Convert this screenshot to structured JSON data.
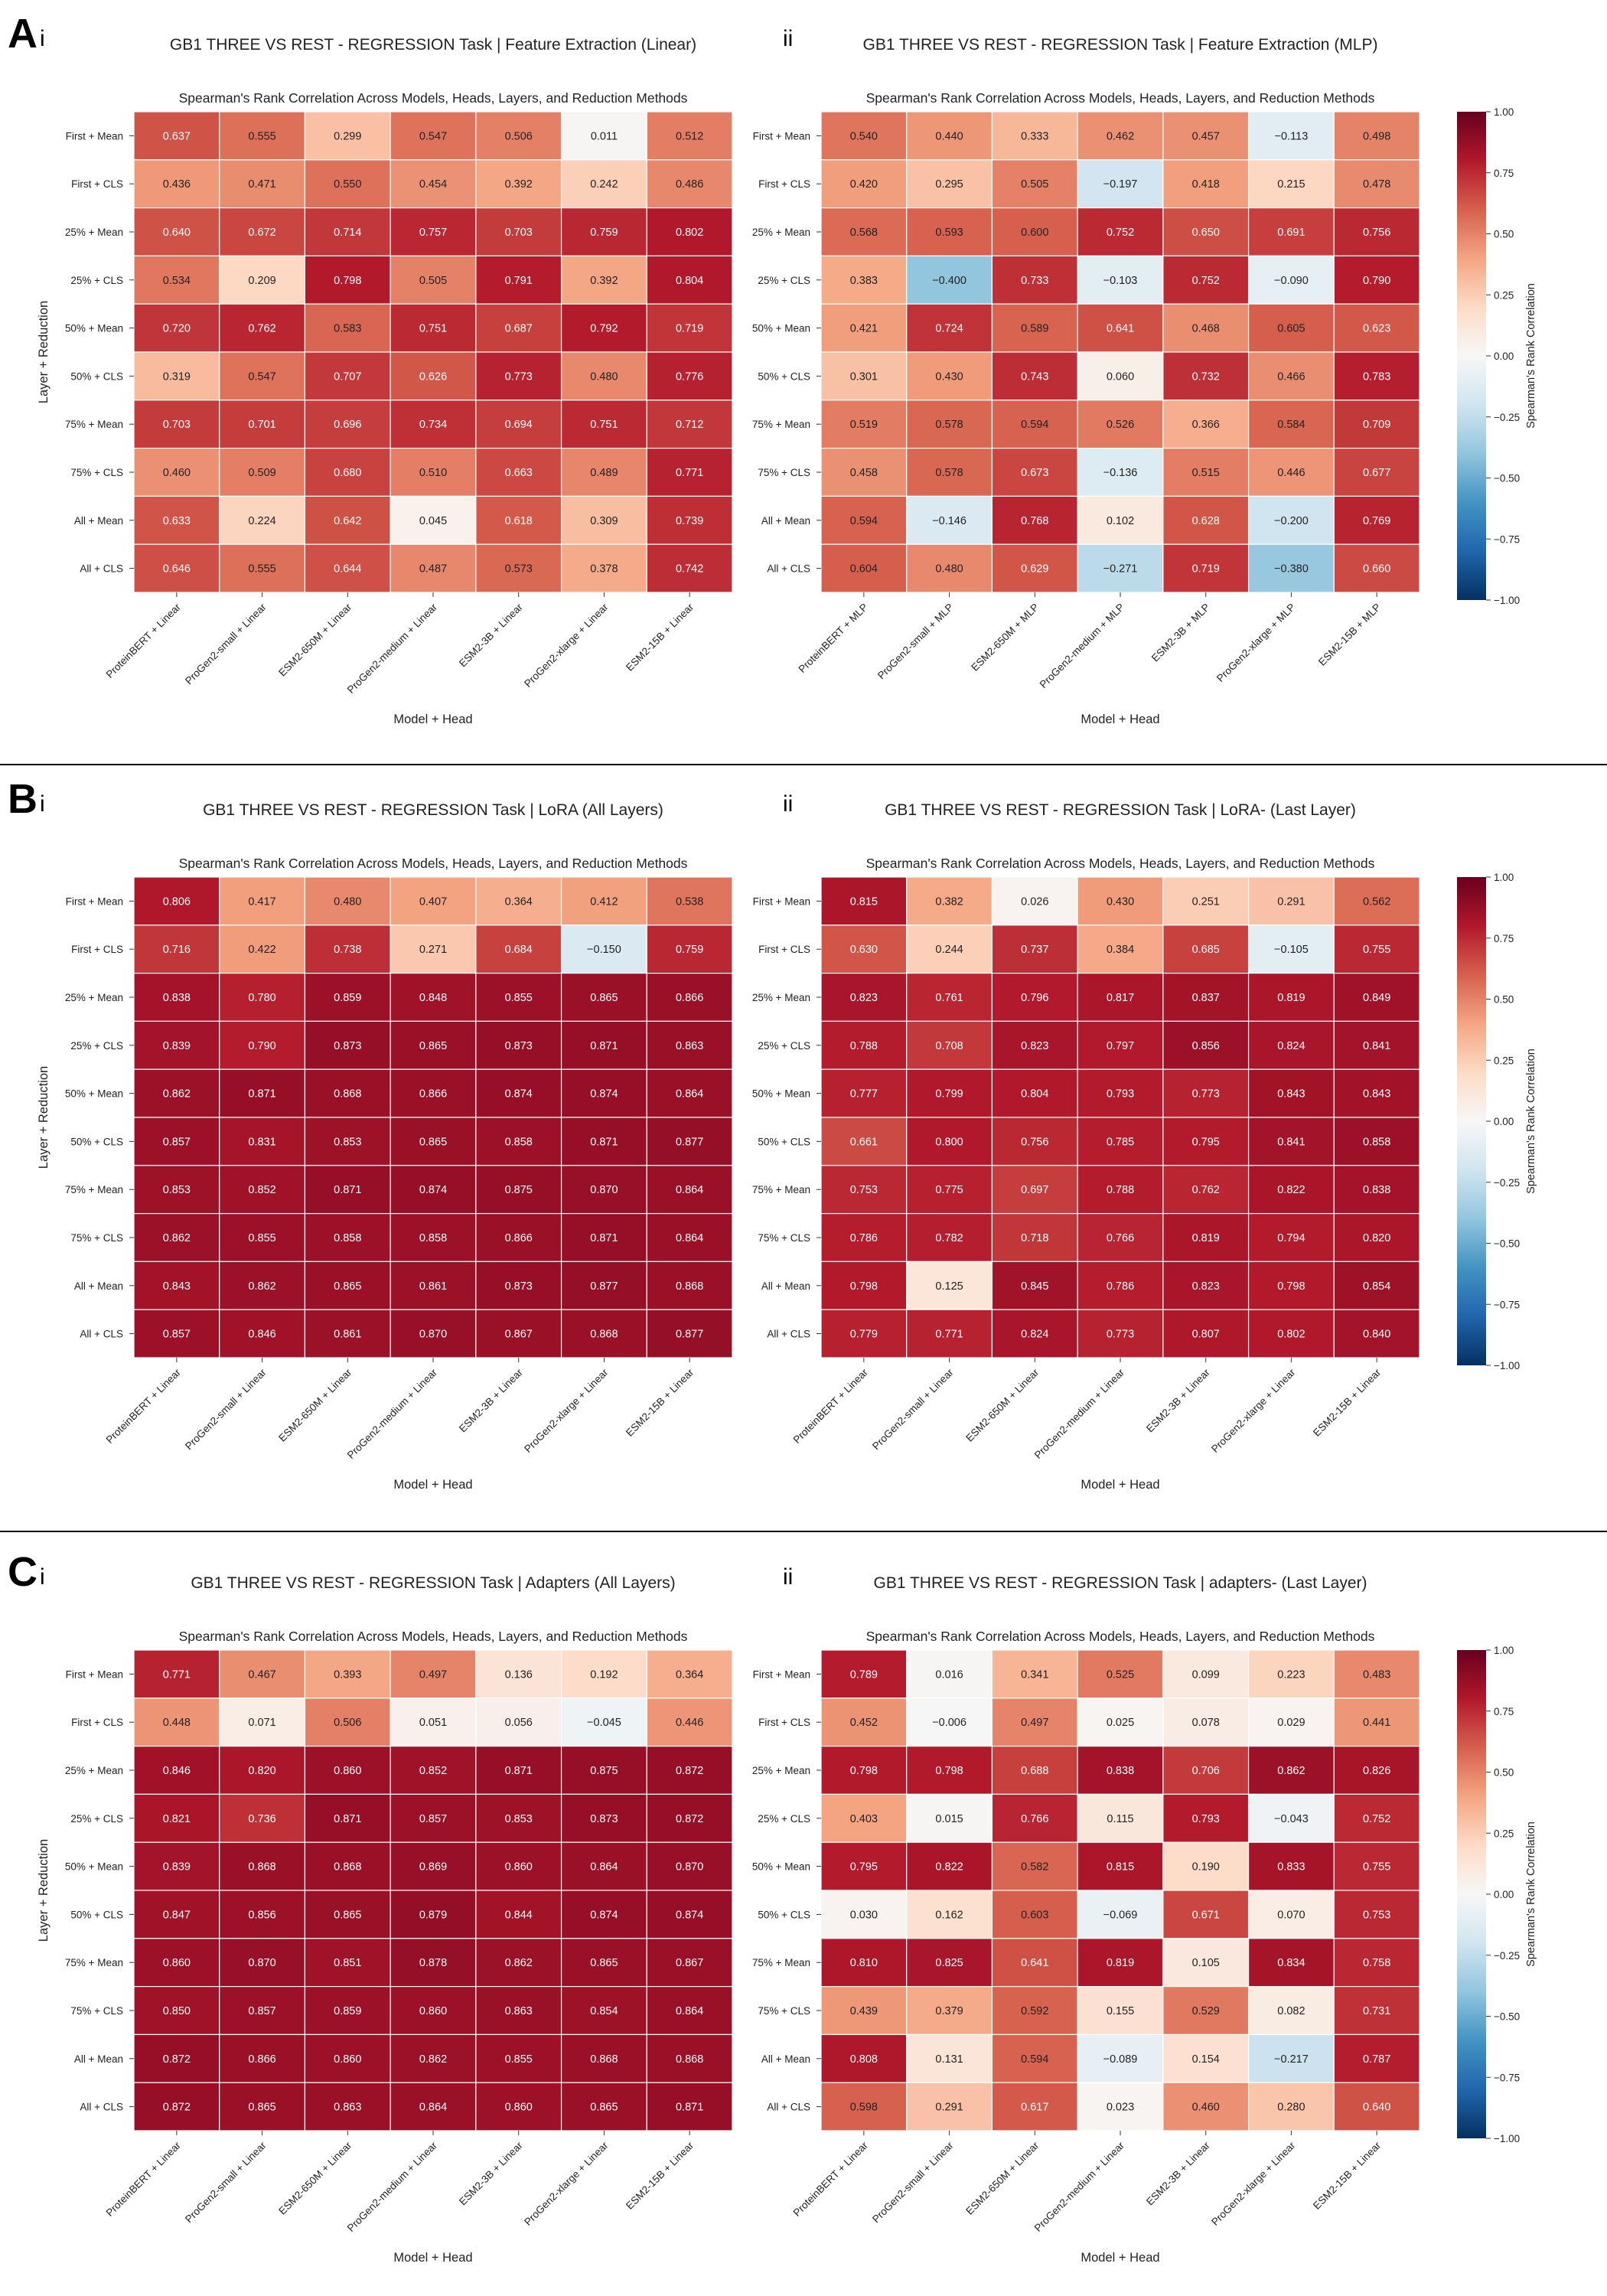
{
  "rows": [
    "First + Mean",
    "First + CLS",
    "25% + Mean",
    "25% + CLS",
    "50% + Mean",
    "50% + CLS",
    "75% + Mean",
    "75% + CLS",
    "All + Mean",
    "All + CLS"
  ],
  "subtitle": "Spearman's Rank Correlation Across Models, Heads, Layers, and Reduction Methods",
  "xlabel": "Model + Head",
  "ylabel": "Layer + Reduction",
  "colorbar": {
    "label": "Spearman's Rank Correlation",
    "range": [
      -1.0,
      1.0
    ],
    "ticks": [
      "1.00",
      "0.75",
      "0.50",
      "0.25",
      "0.00",
      "−0.25",
      "−0.50",
      "−0.75",
      "−1.00"
    ],
    "colormap": "RdBu_r",
    "colors": [
      "#053061",
      "#2166ac",
      "#4393c3",
      "#92c5de",
      "#d1e5f0",
      "#f7f7f7",
      "#fddbc7",
      "#f4a582",
      "#d6604d",
      "#b2182b",
      "#67001f"
    ]
  },
  "panels": [
    {
      "letter": "A",
      "sub": "i",
      "title": "GB1 THREE VS REST - REGRESSION Task | Feature Extraction (Linear)",
      "columns": [
        "ProteinBERT + Linear",
        "ProGen2-small + Linear",
        "ESM2-650M + Linear",
        "ProGen2-medium + Linear",
        "ESM2-3B + Linear",
        "ProGen2-xlarge + Linear",
        "ESM2-15B + Linear"
      ],
      "values": [
        [
          0.637,
          0.555,
          0.299,
          0.547,
          0.506,
          0.011,
          0.512
        ],
        [
          0.436,
          0.471,
          0.55,
          0.454,
          0.392,
          0.242,
          0.486
        ],
        [
          0.64,
          0.672,
          0.714,
          0.757,
          0.703,
          0.759,
          0.802
        ],
        [
          0.534,
          0.209,
          0.798,
          0.505,
          0.791,
          0.392,
          0.804
        ],
        [
          0.72,
          0.762,
          0.583,
          0.751,
          0.687,
          0.792,
          0.719
        ],
        [
          0.319,
          0.547,
          0.707,
          0.626,
          0.773,
          0.48,
          0.776
        ],
        [
          0.703,
          0.701,
          0.696,
          0.734,
          0.694,
          0.751,
          0.712
        ],
        [
          0.46,
          0.509,
          0.68,
          0.51,
          0.663,
          0.489,
          0.771
        ],
        [
          0.633,
          0.224,
          0.642,
          0.045,
          0.618,
          0.309,
          0.739
        ],
        [
          0.646,
          0.555,
          0.644,
          0.487,
          0.573,
          0.378,
          0.742
        ]
      ]
    },
    {
      "letter": "",
      "sub": "ii",
      "title": "GB1 THREE VS REST - REGRESSION Task | Feature Extraction (MLP)",
      "columns": [
        "ProteinBERT + MLP",
        "ProGen2-small + MLP",
        "ESM2-650M + MLP",
        "ProGen2-medium + MLP",
        "ESM2-3B + MLP",
        "ProGen2-xlarge + MLP",
        "ESM2-15B + MLP"
      ],
      "values": [
        [
          0.54,
          0.44,
          0.333,
          0.462,
          0.457,
          -0.113,
          0.498
        ],
        [
          0.42,
          0.295,
          0.505,
          -0.197,
          0.418,
          0.215,
          0.478
        ],
        [
          0.568,
          0.593,
          0.6,
          0.752,
          0.65,
          0.691,
          0.756
        ],
        [
          0.383,
          -0.4,
          0.733,
          -0.103,
          0.752,
          -0.09,
          0.79
        ],
        [
          0.421,
          0.724,
          0.589,
          0.641,
          0.468,
          0.605,
          0.623
        ],
        [
          0.301,
          0.43,
          0.743,
          0.06,
          0.732,
          0.466,
          0.783
        ],
        [
          0.519,
          0.578,
          0.594,
          0.526,
          0.366,
          0.584,
          0.709
        ],
        [
          0.458,
          0.578,
          0.673,
          -0.136,
          0.515,
          0.446,
          0.677
        ],
        [
          0.594,
          -0.146,
          0.768,
          0.102,
          0.628,
          -0.2,
          0.769
        ],
        [
          0.604,
          0.48,
          0.629,
          -0.271,
          0.719,
          -0.38,
          0.66
        ]
      ]
    },
    {
      "letter": "B",
      "sub": "i",
      "title": "GB1 THREE VS REST - REGRESSION Task | LoRA (All Layers)",
      "columns": [
        "ProteinBERT + Linear",
        "ProGen2-small + Linear",
        "ESM2-650M + Linear",
        "ProGen2-medium + Linear",
        "ESM2-3B + Linear",
        "ProGen2-xlarge + Linear",
        "ESM2-15B + Linear"
      ],
      "values": [
        [
          0.806,
          0.417,
          0.48,
          0.407,
          0.364,
          0.412,
          0.538
        ],
        [
          0.716,
          0.422,
          0.738,
          0.271,
          0.684,
          -0.15,
          0.759
        ],
        [
          0.838,
          0.78,
          0.859,
          0.848,
          0.855,
          0.865,
          0.866
        ],
        [
          0.839,
          0.79,
          0.873,
          0.865,
          0.873,
          0.871,
          0.863
        ],
        [
          0.862,
          0.871,
          0.868,
          0.866,
          0.874,
          0.874,
          0.864
        ],
        [
          0.857,
          0.831,
          0.853,
          0.865,
          0.858,
          0.871,
          0.877
        ],
        [
          0.853,
          0.852,
          0.871,
          0.874,
          0.875,
          0.87,
          0.864
        ],
        [
          0.862,
          0.855,
          0.858,
          0.858,
          0.866,
          0.871,
          0.864
        ],
        [
          0.843,
          0.862,
          0.865,
          0.861,
          0.873,
          0.877,
          0.868
        ],
        [
          0.857,
          0.846,
          0.861,
          0.87,
          0.867,
          0.868,
          0.877
        ]
      ]
    },
    {
      "letter": "",
      "sub": "ii",
      "title": "GB1 THREE VS REST - REGRESSION Task | LoRA- (Last Layer)",
      "columns": [
        "ProteinBERT + Linear",
        "ProGen2-small + Linear",
        "ESM2-650M + Linear",
        "ProGen2-medium + Linear",
        "ESM2-3B + Linear",
        "ProGen2-xlarge + Linear",
        "ESM2-15B + Linear"
      ],
      "values": [
        [
          0.815,
          0.382,
          0.026,
          0.43,
          0.251,
          0.291,
          0.562
        ],
        [
          0.63,
          0.244,
          0.737,
          0.384,
          0.685,
          -0.105,
          0.755
        ],
        [
          0.823,
          0.761,
          0.796,
          0.817,
          0.837,
          0.819,
          0.849
        ],
        [
          0.788,
          0.708,
          0.823,
          0.797,
          0.856,
          0.824,
          0.841
        ],
        [
          0.777,
          0.799,
          0.804,
          0.793,
          0.773,
          0.843,
          0.843
        ],
        [
          0.661,
          0.8,
          0.756,
          0.785,
          0.795,
          0.841,
          0.858
        ],
        [
          0.753,
          0.775,
          0.697,
          0.788,
          0.762,
          0.822,
          0.838
        ],
        [
          0.786,
          0.782,
          0.718,
          0.766,
          0.819,
          0.794,
          0.82
        ],
        [
          0.798,
          0.125,
          0.845,
          0.786,
          0.823,
          0.798,
          0.854
        ],
        [
          0.779,
          0.771,
          0.824,
          0.773,
          0.807,
          0.802,
          0.84
        ]
      ]
    },
    {
      "letter": "C",
      "sub": "i",
      "title": "GB1 THREE VS REST - REGRESSION Task | Adapters (All Layers)",
      "columns": [
        "ProteinBERT + Linear",
        "ProGen2-small + Linear",
        "ESM2-650M + Linear",
        "ProGen2-medium + Linear",
        "ESM2-3B + Linear",
        "ProGen2-xlarge + Linear",
        "ESM2-15B + Linear"
      ],
      "values": [
        [
          0.771,
          0.467,
          0.393,
          0.497,
          0.136,
          0.192,
          0.364
        ],
        [
          0.448,
          0.071,
          0.506,
          0.051,
          0.056,
          -0.045,
          0.446
        ],
        [
          0.846,
          0.82,
          0.86,
          0.852,
          0.871,
          0.875,
          0.872
        ],
        [
          0.821,
          0.736,
          0.871,
          0.857,
          0.853,
          0.873,
          0.872
        ],
        [
          0.839,
          0.868,
          0.868,
          0.869,
          0.86,
          0.864,
          0.87
        ],
        [
          0.847,
          0.856,
          0.865,
          0.879,
          0.844,
          0.874,
          0.874
        ],
        [
          0.86,
          0.87,
          0.851,
          0.878,
          0.862,
          0.865,
          0.867
        ],
        [
          0.85,
          0.857,
          0.859,
          0.86,
          0.863,
          0.854,
          0.864
        ],
        [
          0.872,
          0.866,
          0.86,
          0.862,
          0.855,
          0.868,
          0.868
        ],
        [
          0.872,
          0.865,
          0.863,
          0.864,
          0.86,
          0.865,
          0.871
        ]
      ]
    },
    {
      "letter": "",
      "sub": "ii",
      "title": "GB1 THREE VS REST - REGRESSION Task | adapters- (Last Layer)",
      "columns": [
        "ProteinBERT + Linear",
        "ProGen2-small + Linear",
        "ESM2-650M + Linear",
        "ProGen2-medium + Linear",
        "ESM2-3B + Linear",
        "ProGen2-xlarge + Linear",
        "ESM2-15B + Linear"
      ],
      "values": [
        [
          0.789,
          0.016,
          0.341,
          0.525,
          0.099,
          0.223,
          0.483
        ],
        [
          0.452,
          -0.006,
          0.497,
          0.025,
          0.078,
          0.029,
          0.441
        ],
        [
          0.798,
          0.798,
          0.688,
          0.838,
          0.706,
          0.862,
          0.826
        ],
        [
          0.403,
          0.015,
          0.766,
          0.115,
          0.793,
          -0.043,
          0.752
        ],
        [
          0.795,
          0.822,
          0.582,
          0.815,
          0.19,
          0.833,
          0.755
        ],
        [
          0.03,
          0.162,
          0.603,
          -0.069,
          0.671,
          0.07,
          0.753
        ],
        [
          0.81,
          0.825,
          0.641,
          0.819,
          0.105,
          0.834,
          0.758
        ],
        [
          0.439,
          0.379,
          0.592,
          0.155,
          0.529,
          0.082,
          0.731
        ],
        [
          0.808,
          0.131,
          0.594,
          -0.089,
          0.154,
          -0.217,
          0.787
        ],
        [
          0.598,
          0.291,
          0.617,
          0.023,
          0.46,
          0.28,
          0.64
        ]
      ]
    }
  ]
}
